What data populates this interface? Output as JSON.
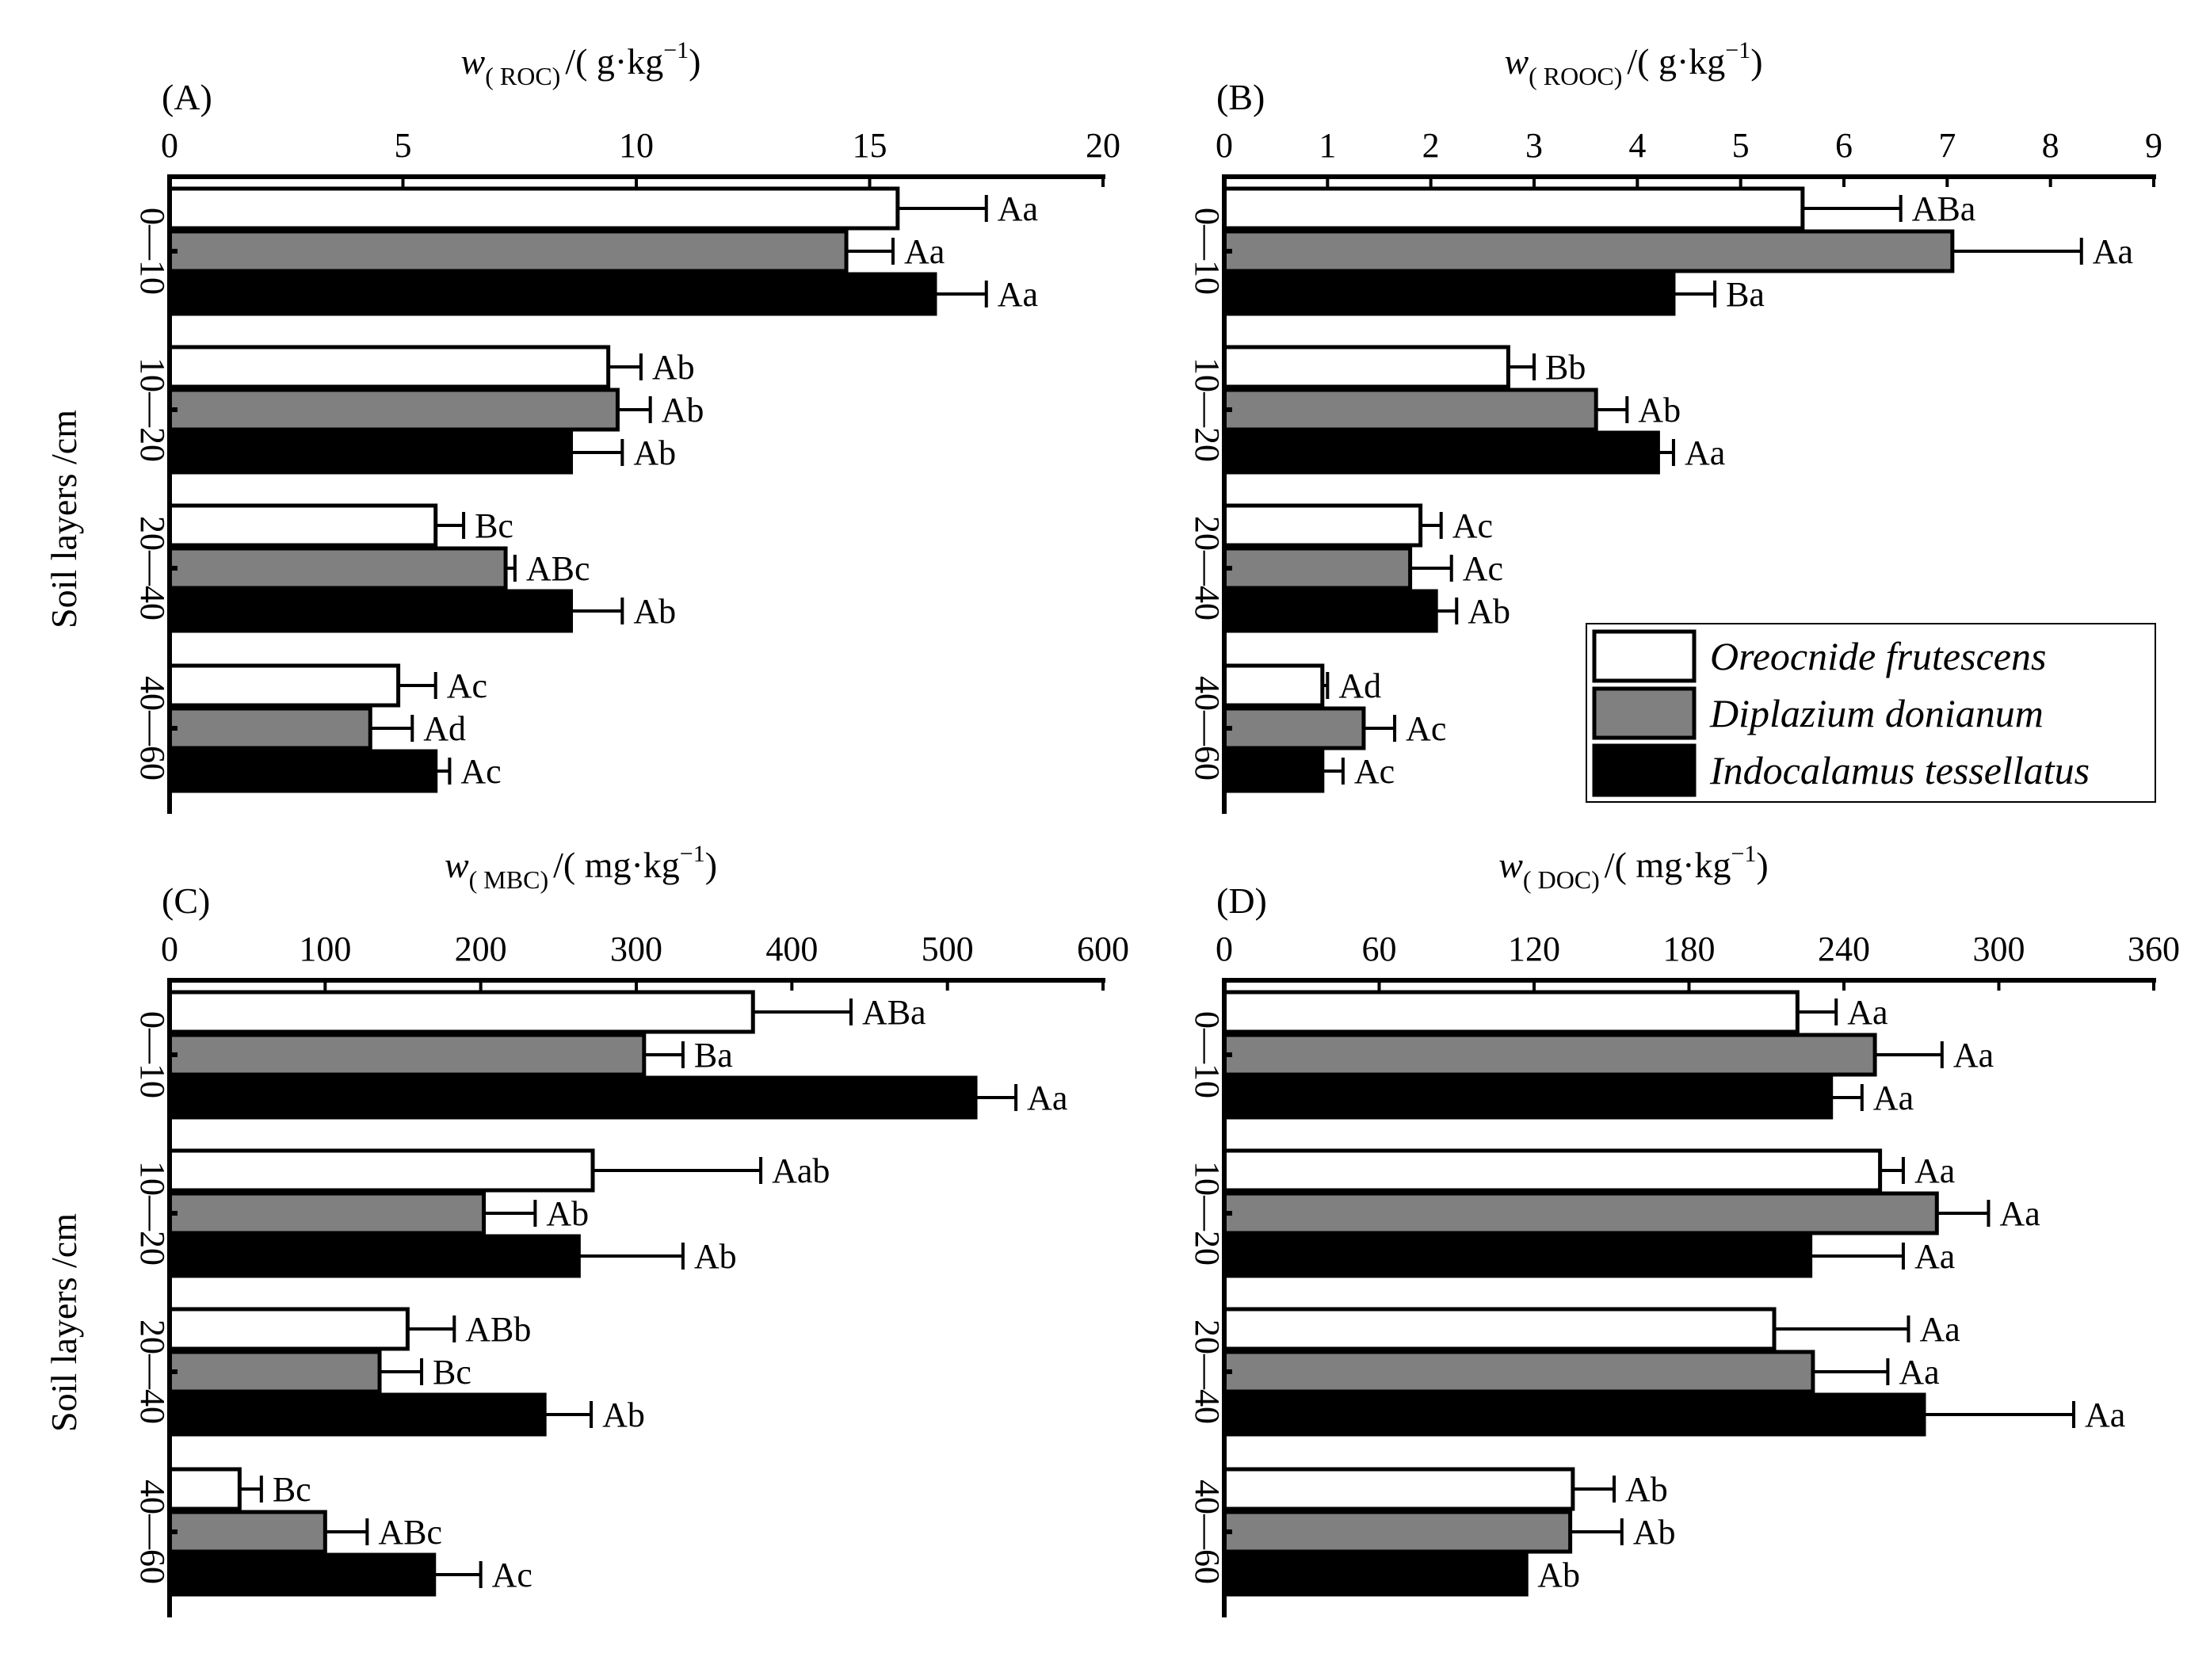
{
  "chart_data": {
    "type": "bar",
    "orientation": "horizontal",
    "ylabel": "Soil layers /cm",
    "categories": [
      "0—10",
      "10—20",
      "20—40",
      "40—60"
    ],
    "legend": {
      "position": "bottom-right of panel B",
      "entries": [
        {
          "name": "Oreocnide frutescens",
          "color": "#ffffff"
        },
        {
          "name": "Diplazium donianum",
          "color": "#808080"
        },
        {
          "name": "Indocalamus tessellatus",
          "color": "#000000"
        }
      ]
    },
    "panels": [
      {
        "label": "(A)",
        "title_var": "w",
        "title_sub": "( ROC)",
        "title_unit": "/( g·kg",
        "title_exp": "−1",
        "title_close": ")",
        "xlim": [
          0,
          20
        ],
        "ticks": [
          0,
          5,
          10,
          15,
          20
        ],
        "series": [
          {
            "name": "Oreocnide frutescens",
            "values": [
              15.6,
              9.4,
              5.7,
              4.9
            ],
            "errors": [
              1.9,
              0.7,
              0.6,
              0.8
            ]
          },
          {
            "name": "Diplazium donianum",
            "values": [
              14.5,
              9.6,
              7.2,
              4.3
            ],
            "errors": [
              1.0,
              0.7,
              0.2,
              0.9
            ]
          },
          {
            "name": "Indocalamus tessellatus",
            "values": [
              16.4,
              8.6,
              8.6,
              5.7
            ],
            "errors": [
              1.1,
              1.1,
              1.1,
              0.3
            ]
          }
        ],
        "letters": [
          [
            "Aa",
            "Aa",
            "Aa"
          ],
          [
            "Ab",
            "Ab",
            "Ab"
          ],
          [
            "Bc",
            "ABc",
            "Ab"
          ],
          [
            "Ac",
            "Ad",
            "Ac"
          ]
        ]
      },
      {
        "label": "(B)",
        "title_var": "w",
        "title_sub": "( ROOC)",
        "title_unit": "/( g·kg",
        "title_exp": "−1",
        "title_close": ")",
        "xlim": [
          0,
          9
        ],
        "ticks": [
          0,
          1,
          2,
          3,
          4,
          5,
          6,
          7,
          8,
          9
        ],
        "series": [
          {
            "name": "Oreocnide frutescens",
            "values": [
              5.6,
              2.75,
              1.9,
              0.95
            ],
            "errors": [
              0.95,
              0.25,
              0.2,
              0.05
            ]
          },
          {
            "name": "Diplazium donianum",
            "values": [
              7.05,
              3.6,
              1.8,
              1.35
            ],
            "errors": [
              1.25,
              0.3,
              0.4,
              0.3
            ]
          },
          {
            "name": "Indocalamus tessellatus",
            "values": [
              4.35,
              4.2,
              2.05,
              0.95
            ],
            "errors": [
              0.4,
              0.15,
              0.2,
              0.2
            ]
          }
        ],
        "letters": [
          [
            "ABa",
            "Aa",
            "Ba"
          ],
          [
            "Bb",
            "Ab",
            "Aa"
          ],
          [
            "Ac",
            "Ac",
            "Ab"
          ],
          [
            "Ad",
            "Ac",
            "Ac"
          ]
        ]
      },
      {
        "label": "(C)",
        "title_var": "w",
        "title_sub": "( MBC)",
        "title_unit": "/( mg·kg",
        "title_exp": "−1",
        "title_close": ")",
        "xlim": [
          0,
          600
        ],
        "ticks": [
          0,
          100,
          200,
          300,
          400,
          500,
          600
        ],
        "series": [
          {
            "name": "Oreocnide frutescens",
            "values": [
              375,
              272,
              153,
              45
            ],
            "errors": [
              63,
              108,
              30,
              14
            ]
          },
          {
            "name": "Diplazium donianum",
            "values": [
              305,
              202,
              135,
              100
            ],
            "errors": [
              25,
              33,
              27,
              27
            ]
          },
          {
            "name": "Indocalamus tessellatus",
            "values": [
              518,
              263,
              241,
              170
            ],
            "errors": [
              26,
              67,
              30,
              30
            ]
          }
        ],
        "letters": [
          [
            "ABa",
            "Ba",
            "Aa"
          ],
          [
            "Aab",
            "Ab",
            "Ab"
          ],
          [
            "ABb",
            "Bc",
            "Ab"
          ],
          [
            "Bc",
            "ABc",
            "Ac"
          ]
        ]
      },
      {
        "label": "(D)",
        "title_var": "w",
        "title_sub": "( DOC)",
        "title_unit": "/( mg·kg",
        "title_exp": "−1",
        "title_close": ")",
        "xlim": [
          0,
          360
        ],
        "ticks": [
          0,
          60,
          120,
          180,
          240,
          300,
          360
        ],
        "series": [
          {
            "name": "Oreocnide frutescens",
            "values": [
              222,
              254,
              213,
              135
            ],
            "errors": [
              15,
              9,
              52,
              16
            ]
          },
          {
            "name": "Diplazium donianum",
            "values": [
              252,
              276,
              228,
              134
            ],
            "errors": [
              26,
              20,
              29,
              20
            ]
          },
          {
            "name": "Indocalamus tessellatus",
            "values": [
              235,
              227,
              271,
              117
            ],
            "errors": [
              12,
              36,
              58,
              0
            ]
          }
        ],
        "letters": [
          [
            "Aa",
            "Aa",
            "Aa"
          ],
          [
            "Aa",
            "Aa",
            "Aa"
          ],
          [
            "Aa",
            "Aa",
            "Aa"
          ],
          [
            "Ab",
            "Ab",
            "Ab"
          ]
        ]
      }
    ]
  }
}
